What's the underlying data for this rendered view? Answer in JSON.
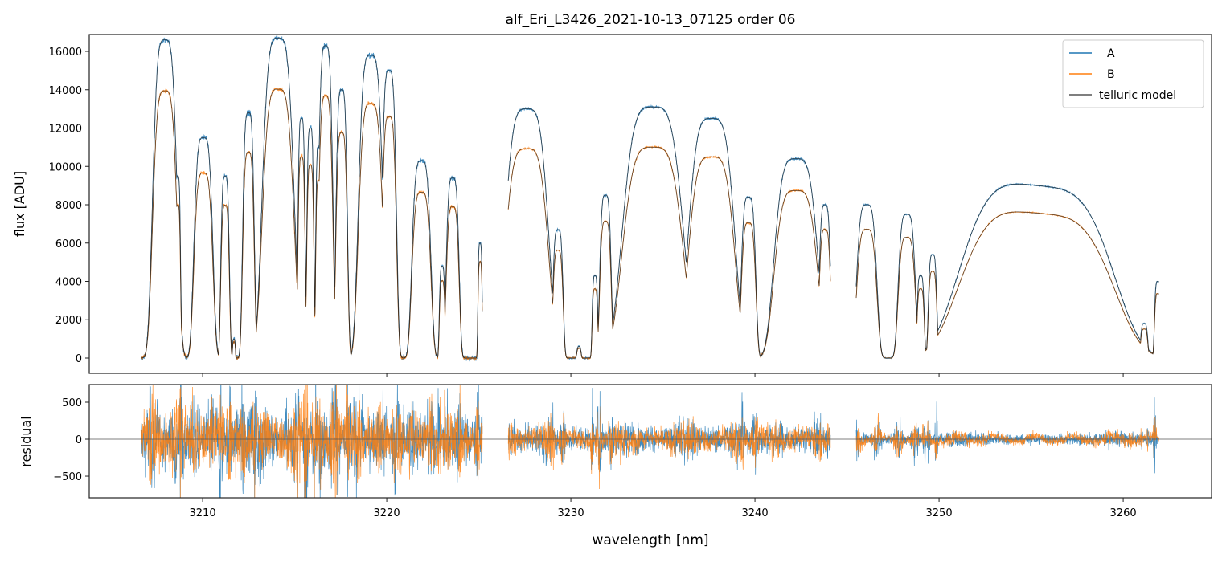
{
  "chart_data": {
    "type": "line",
    "title": "alf_Eri_L3426_2021-10-13_07125  order 06",
    "xlabel": "wavelength [nm]",
    "panels": [
      {
        "name": "flux",
        "ylabel": "flux [ADU]",
        "ylim": [
          -796,
          16880
        ],
        "yticks": [
          0,
          2000,
          4000,
          6000,
          8000,
          10000,
          12000,
          14000,
          16000
        ]
      },
      {
        "name": "residual",
        "ylabel": "residual",
        "ylim": [
          -793,
          739
        ],
        "yticks": [
          -500,
          0,
          500
        ]
      }
    ],
    "xlim": [
      3203.84,
      3264.8
    ],
    "xticks": [
      3210,
      3220,
      3230,
      3240,
      3250,
      3260
    ],
    "legend": {
      "placement": "top-right",
      "entries": [
        "A",
        "B",
        "telluric model"
      ]
    },
    "series_colors": {
      "A": "#1f77b4",
      "B": "#ff7f0e",
      "telluric model": "#333333"
    },
    "B_to_A_ratio": 0.84,
    "coverage_nm": [
      [
        3206.65,
        3225.2
      ],
      [
        3226.6,
        3244.1
      ],
      [
        3245.5,
        3261.95
      ]
    ],
    "transmission_peaks_A": [
      [
        3207.95,
        0.74,
        16600
      ],
      [
        3208.65,
        0.17,
        9500
      ],
      [
        3210.04,
        0.57,
        11500
      ],
      [
        3211.22,
        0.26,
        9500
      ],
      [
        3211.7,
        0.09,
        1000
      ],
      [
        3212.49,
        0.35,
        12800
      ],
      [
        3213.06,
        0.09,
        900
      ],
      [
        3214.1,
        0.96,
        16700
      ],
      [
        3215.37,
        0.22,
        12500
      ],
      [
        3215.85,
        0.22,
        12000
      ],
      [
        3216.29,
        0.17,
        11000
      ],
      [
        3216.68,
        0.44,
        16300
      ],
      [
        3217.55,
        0.35,
        14000
      ],
      [
        3219.13,
        0.74,
        15800
      ],
      [
        3220.13,
        0.44,
        15000
      ],
      [
        3221.88,
        0.57,
        10300
      ],
      [
        3223.01,
        0.17,
        4800
      ],
      [
        3223.58,
        0.39,
        9400
      ],
      [
        3225.07,
        0.13,
        6000
      ],
      [
        3227.6,
        1.31,
        13000
      ],
      [
        3229.3,
        0.31,
        6700
      ],
      [
        3230.44,
        0.13,
        600
      ],
      [
        3231.31,
        0.17,
        4300
      ],
      [
        3231.88,
        0.35,
        8500
      ],
      [
        3234.45,
        1.83,
        13100
      ],
      [
        3237.64,
        1.4,
        12500
      ],
      [
        3239.65,
        0.44,
        8400
      ],
      [
        3242.23,
        1.31,
        10400
      ],
      [
        3243.8,
        0.35,
        8000
      ],
      [
        3246.07,
        0.61,
        8000
      ],
      [
        3248.25,
        0.52,
        7500
      ],
      [
        3249.0,
        0.22,
        4300
      ],
      [
        3249.65,
        0.26,
        5400
      ],
      [
        3255.33,
        4.6,
        9000
      ],
      [
        3261.14,
        0.22,
        1800
      ],
      [
        3261.88,
        0.2,
        4000
      ]
    ],
    "residual_scatter_approx": {
      "blue_region_1": 400,
      "blue_region_2": 200,
      "blue_region_3": 80
    }
  }
}
